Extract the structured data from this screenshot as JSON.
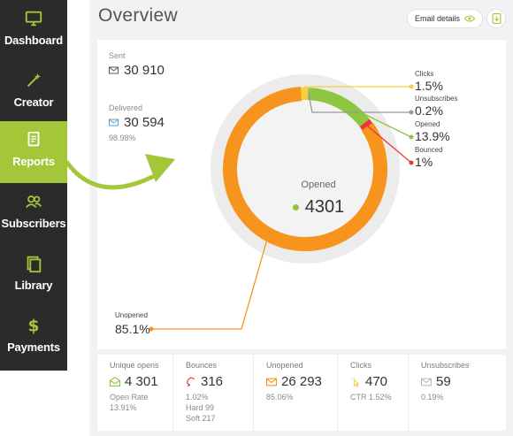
{
  "sidebar": {
    "items": [
      {
        "label": "Dashboard",
        "icon": "monitor-icon",
        "active": false
      },
      {
        "label": "Creator",
        "icon": "magic-wand-icon",
        "active": false
      },
      {
        "label": "Reports",
        "icon": "report-icon",
        "active": true
      },
      {
        "label": "Subscribers",
        "icon": "users-icon",
        "active": false
      },
      {
        "label": "Library",
        "icon": "library-icon",
        "active": false
      },
      {
        "label": "Payments",
        "icon": "dollar-icon",
        "active": false
      }
    ]
  },
  "header": {
    "title": "Overview",
    "email_details_label": "Email details"
  },
  "summary": {
    "sent_label": "Sent",
    "sent_value": "30 910",
    "delivered_label": "Delivered",
    "delivered_value": "30 594",
    "delivered_pct": "98.98%"
  },
  "donut": {
    "center_label": "Opened",
    "center_value": "4301",
    "segments": [
      {
        "name": "Unopened",
        "pct": 85.1,
        "color": "#f7941d"
      },
      {
        "name": "Clicks",
        "pct": 1.5,
        "color": "#f4d03f"
      },
      {
        "name": "Unsubscribes",
        "pct": 0.2,
        "color": "#999999"
      },
      {
        "name": "Opened",
        "pct": 13.9,
        "color": "#8dc63f"
      },
      {
        "name": "Bounced",
        "pct": 1,
        "color": "#e8373a"
      }
    ],
    "annotations": {
      "clicks_label": "Clicks",
      "clicks_value": "1.5%",
      "unsubscribes_label": "Unsubscribes",
      "unsubscribes_value": "0.2%",
      "opened_label": "Opened",
      "opened_value": "13.9%",
      "bounced_label": "Bounced",
      "bounced_value": "1%",
      "unopened_label": "Unopened",
      "unopened_value": "85.1%"
    }
  },
  "bottom": {
    "unique_opens": {
      "label": "Unique opens",
      "value": "4 301",
      "sub1": "Open Rate",
      "sub2": "13.91%"
    },
    "bounces": {
      "label": "Bounces",
      "value": "316",
      "sub1": "1.02%",
      "sub2": "Hard 99",
      "sub3": "Soft 217"
    },
    "unopened": {
      "label": "Unopened",
      "value": "26 293",
      "sub1": "85.06%"
    },
    "clicks": {
      "label": "Clicks",
      "value": "470",
      "sub1": "CTR 1.52%"
    },
    "unsubscribes": {
      "label": "Unsubscribes",
      "value": "59",
      "sub1": "0.19%"
    }
  },
  "colors": {
    "accent": "#a4c639",
    "sidebar_bg": "#2b2b2b",
    "orange": "#f7941d",
    "yellow": "#f4d03f",
    "green": "#8dc63f",
    "red": "#e8373a",
    "gray": "#999999"
  }
}
